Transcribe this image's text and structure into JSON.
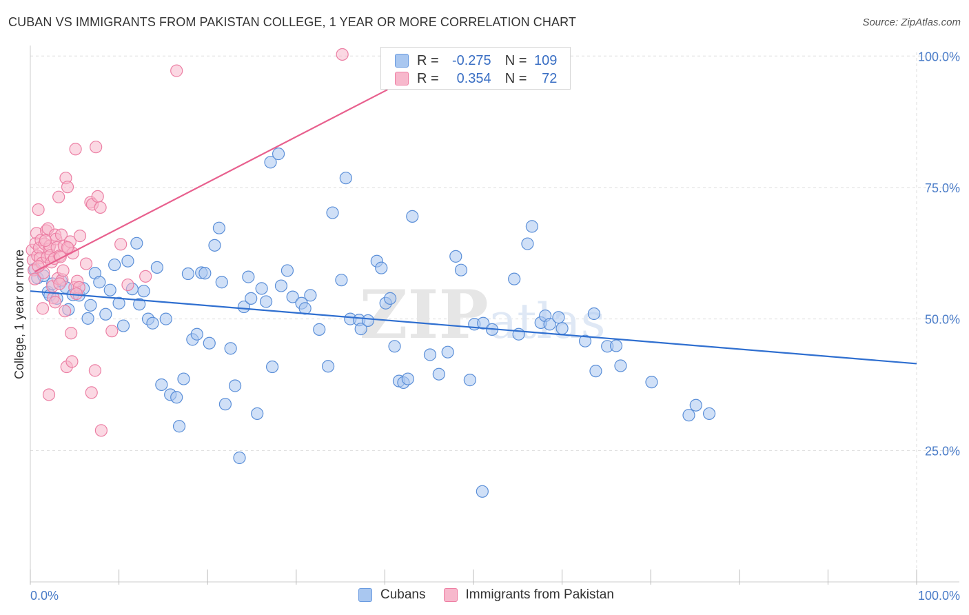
{
  "header": {
    "title": "CUBAN VS IMMIGRANTS FROM PAKISTAN COLLEGE, 1 YEAR OR MORE CORRELATION CHART",
    "source": "Source: ZipAtlas.com"
  },
  "watermark": "ZIPatlas",
  "stats_box": {
    "rows": [
      {
        "r_label": "R =",
        "r_value": "-0.275",
        "n_label": "N =",
        "n_value": "109",
        "color": "#a9c7f0",
        "border": "#6a9be0"
      },
      {
        "r_label": "R =",
        "r_value": "0.354",
        "n_label": "N =",
        "n_value": "72",
        "color": "#f7b8cc",
        "border": "#ee7fa3"
      }
    ]
  },
  "legend": {
    "items": [
      {
        "label": "Cubans",
        "color": "#a9c7f0",
        "border": "#6a9be0"
      },
      {
        "label": "Immigrants from Pakistan",
        "color": "#f7b8cc",
        "border": "#ee7fa3"
      }
    ]
  },
  "chart_data": {
    "type": "scatter",
    "title": "CUBAN VS IMMIGRANTS FROM PAKISTAN COLLEGE, 1 YEAR OR MORE CORRELATION CHART",
    "xlabel": "",
    "ylabel": "College, 1 year or more",
    "xlim": [
      0,
      100
    ],
    "ylim": [
      0,
      102
    ],
    "x_tick_labels": [
      "0.0%",
      "100.0%"
    ],
    "y_ticks": [
      25,
      50,
      75,
      100
    ],
    "y_tick_labels": [
      "25.0%",
      "50.0%",
      "75.0%",
      "100.0%"
    ],
    "grid": true,
    "legend_position": "bottom",
    "colors": {
      "cubans_fill": "#a9c7f0",
      "cubans_stroke": "#5b8fd8",
      "cubans_line": "#2f6fd0",
      "pak_fill": "#f7b8cc",
      "pak_stroke": "#ec7fa4",
      "pak_line": "#e8608e",
      "grid": "#dddddd",
      "tick_text": "#4a7cc8"
    },
    "series": [
      {
        "name": "Cubans",
        "r": -0.275,
        "n": 109,
        "trend": {
          "x": [
            0,
            100
          ],
          "y": [
            55.3,
            41.5
          ]
        },
        "points": [
          [
            0.5,
            59.5
          ],
          [
            0.8,
            57.8
          ],
          [
            1.5,
            58.2
          ],
          [
            2.0,
            55.1
          ],
          [
            2.2,
            54.5
          ],
          [
            2.5,
            56.7
          ],
          [
            3.0,
            53.9
          ],
          [
            3.5,
            57.2
          ],
          [
            4.0,
            56.0
          ],
          [
            4.3,
            51.8
          ],
          [
            4.8,
            54.6
          ],
          [
            5.5,
            54.5
          ],
          [
            6.0,
            55.8
          ],
          [
            6.5,
            50.1
          ],
          [
            6.8,
            52.6
          ],
          [
            7.3,
            58.7
          ],
          [
            7.8,
            57.0
          ],
          [
            8.5,
            50.9
          ],
          [
            9.0,
            55.5
          ],
          [
            9.5,
            60.3
          ],
          [
            10.0,
            53.0
          ],
          [
            10.5,
            48.7
          ],
          [
            11.0,
            61.0
          ],
          [
            11.5,
            55.7
          ],
          [
            12.0,
            64.4
          ],
          [
            12.3,
            52.8
          ],
          [
            12.8,
            55.3
          ],
          [
            13.3,
            50.0
          ],
          [
            13.8,
            49.2
          ],
          [
            14.3,
            59.8
          ],
          [
            14.8,
            37.5
          ],
          [
            15.3,
            50.0
          ],
          [
            15.8,
            35.6
          ],
          [
            16.5,
            35.1
          ],
          [
            16.8,
            29.6
          ],
          [
            17.3,
            38.6
          ],
          [
            17.8,
            58.6
          ],
          [
            18.3,
            46.1
          ],
          [
            18.8,
            47.1
          ],
          [
            19.3,
            58.8
          ],
          [
            19.7,
            58.7
          ],
          [
            20.2,
            45.4
          ],
          [
            20.8,
            64.0
          ],
          [
            21.3,
            67.3
          ],
          [
            21.6,
            57.0
          ],
          [
            22.0,
            33.8
          ],
          [
            22.6,
            44.4
          ],
          [
            23.1,
            37.3
          ],
          [
            23.6,
            23.6
          ],
          [
            24.1,
            52.3
          ],
          [
            24.6,
            58.0
          ],
          [
            24.9,
            53.9
          ],
          [
            25.6,
            32.0
          ],
          [
            26.1,
            55.8
          ],
          [
            26.6,
            53.3
          ],
          [
            27.1,
            79.8
          ],
          [
            27.3,
            40.9
          ],
          [
            28.0,
            81.4
          ],
          [
            28.3,
            56.3
          ],
          [
            29.0,
            59.2
          ],
          [
            29.6,
            54.2
          ],
          [
            30.6,
            53.0
          ],
          [
            31.0,
            52.0
          ],
          [
            31.6,
            54.5
          ],
          [
            32.6,
            48.0
          ],
          [
            33.6,
            41.0
          ],
          [
            34.1,
            70.2
          ],
          [
            35.1,
            57.4
          ],
          [
            35.6,
            76.8
          ],
          [
            36.1,
            50.0
          ],
          [
            37.1,
            49.8
          ],
          [
            37.3,
            48.1
          ],
          [
            38.1,
            49.7
          ],
          [
            39.1,
            61.0
          ],
          [
            39.6,
            59.7
          ],
          [
            40.1,
            53.0
          ],
          [
            40.6,
            53.9
          ],
          [
            41.1,
            44.8
          ],
          [
            41.6,
            38.2
          ],
          [
            42.1,
            37.9
          ],
          [
            42.6,
            38.6
          ],
          [
            43.1,
            69.5
          ],
          [
            45.1,
            43.2
          ],
          [
            46.1,
            39.5
          ],
          [
            47.1,
            43.7
          ],
          [
            48.0,
            61.9
          ],
          [
            48.6,
            59.3
          ],
          [
            49.6,
            38.4
          ],
          [
            50.1,
            49.0
          ],
          [
            51.1,
            49.2
          ],
          [
            52.1,
            48.0
          ],
          [
            54.6,
            57.6
          ],
          [
            55.1,
            47.1
          ],
          [
            56.1,
            64.3
          ],
          [
            56.6,
            67.6
          ],
          [
            57.6,
            49.3
          ],
          [
            58.1,
            50.6
          ],
          [
            58.6,
            49.0
          ],
          [
            59.6,
            50.3
          ],
          [
            60.0,
            48.2
          ],
          [
            62.6,
            45.8
          ],
          [
            63.6,
            51.0
          ],
          [
            63.8,
            40.1
          ],
          [
            65.1,
            44.8
          ],
          [
            66.1,
            44.9
          ],
          [
            66.6,
            41.1
          ],
          [
            70.1,
            38.0
          ],
          [
            74.3,
            31.7
          ],
          [
            75.1,
            33.6
          ],
          [
            76.6,
            32.0
          ],
          [
            51.0,
            17.2
          ]
        ]
      },
      {
        "name": "Immigrants from Pakistan",
        "r": 0.354,
        "n": 72,
        "trend": {
          "x": [
            0.5,
            40.3
          ],
          "y": [
            59.0,
            93.6
          ]
        },
        "points": [
          [
            0.2,
            63.1
          ],
          [
            0.3,
            61.2
          ],
          [
            0.4,
            59.3
          ],
          [
            0.5,
            57.6
          ],
          [
            0.6,
            64.4
          ],
          [
            0.7,
            66.3
          ],
          [
            0.8,
            62.0
          ],
          [
            0.9,
            70.8
          ],
          [
            1.0,
            63.5
          ],
          [
            1.1,
            61.6
          ],
          [
            1.2,
            65.0
          ],
          [
            1.3,
            60.6
          ],
          [
            1.5,
            58.8
          ],
          [
            1.6,
            64.3
          ],
          [
            1.8,
            66.8
          ],
          [
            1.9,
            61.8
          ],
          [
            2.0,
            67.2
          ],
          [
            2.1,
            63.3
          ],
          [
            2.2,
            63.9
          ],
          [
            2.3,
            62.1
          ],
          [
            2.4,
            60.8
          ],
          [
            2.5,
            56.2
          ],
          [
            2.6,
            54.0
          ],
          [
            2.7,
            61.5
          ],
          [
            2.8,
            66.0
          ],
          [
            2.9,
            65.2
          ],
          [
            3.0,
            63.6
          ],
          [
            3.1,
            57.7
          ],
          [
            3.2,
            73.2
          ],
          [
            3.3,
            62.0
          ],
          [
            3.4,
            61.8
          ],
          [
            3.5,
            66.0
          ],
          [
            3.6,
            57.5
          ],
          [
            3.7,
            59.2
          ],
          [
            3.8,
            63.9
          ],
          [
            3.9,
            51.5
          ],
          [
            4.0,
            76.8
          ],
          [
            4.1,
            40.9
          ],
          [
            4.2,
            75.1
          ],
          [
            4.3,
            63.4
          ],
          [
            4.5,
            64.7
          ],
          [
            4.6,
            47.3
          ],
          [
            4.7,
            41.9
          ],
          [
            4.8,
            62.5
          ],
          [
            5.0,
            56.0
          ],
          [
            5.1,
            82.3
          ],
          [
            5.3,
            57.2
          ],
          [
            5.5,
            56.0
          ],
          [
            5.6,
            65.8
          ],
          [
            6.3,
            60.5
          ],
          [
            6.8,
            72.2
          ],
          [
            6.9,
            36.0
          ],
          [
            7.0,
            71.8
          ],
          [
            7.3,
            40.2
          ],
          [
            7.4,
            82.7
          ],
          [
            7.6,
            73.3
          ],
          [
            7.9,
            71.2
          ],
          [
            8.0,
            28.8
          ],
          [
            9.2,
            47.7
          ],
          [
            10.2,
            64.2
          ],
          [
            11.0,
            56.5
          ],
          [
            13.0,
            58.1
          ],
          [
            16.5,
            97.2
          ],
          [
            35.2,
            100.3
          ],
          [
            2.1,
            35.6
          ],
          [
            4.2,
            63.6
          ],
          [
            5.2,
            54.8
          ],
          [
            3.3,
            56.7
          ],
          [
            1.4,
            52.0
          ],
          [
            2.8,
            53.2
          ],
          [
            0.9,
            60.0
          ],
          [
            1.7,
            64.9
          ]
        ]
      }
    ]
  }
}
